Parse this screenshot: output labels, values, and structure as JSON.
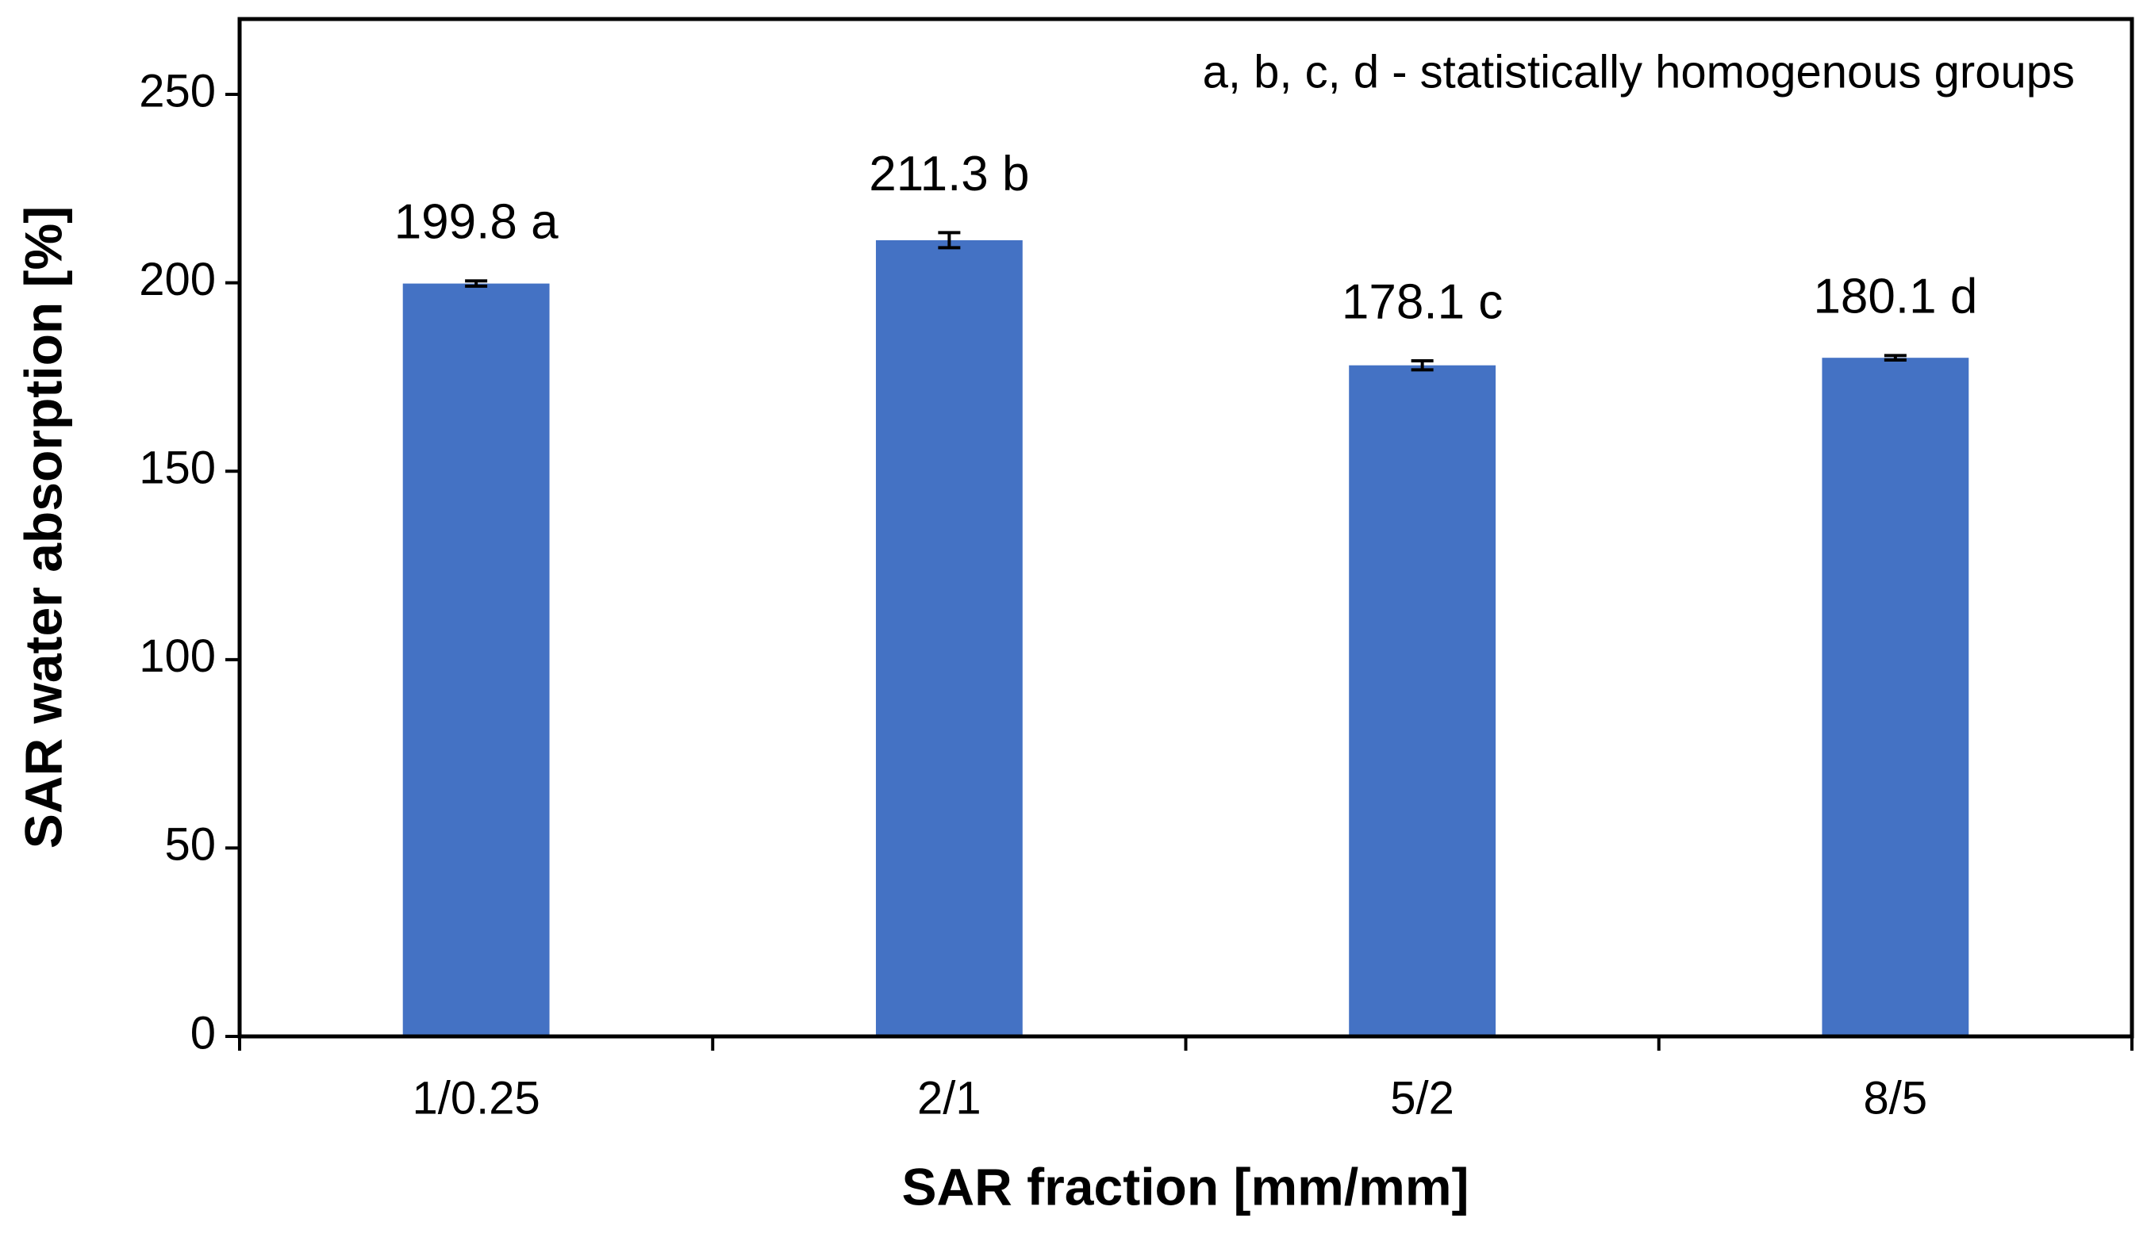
{
  "chart_data": {
    "type": "bar",
    "annotation": "a, b, c, d - statistically homogenous groups",
    "x_label": "SAR fraction [mm/mm]",
    "y_label": "SAR water absorption [%]",
    "categories": [
      "1/0.25",
      "2/1",
      "5/2",
      "8/5"
    ],
    "values": [
      199.8,
      211.3,
      178.1,
      180.1
    ],
    "value_labels": [
      "199.8 a",
      "211.3 b",
      "178.1 c",
      "180.1 d"
    ],
    "errors": [
      0.7,
      2.0,
      1.2,
      0.6
    ],
    "color": "#4472c4",
    "ylim": [
      0,
      270
    ],
    "yticks": [
      0,
      50,
      100,
      150,
      200,
      250
    ],
    "grid": false
  }
}
